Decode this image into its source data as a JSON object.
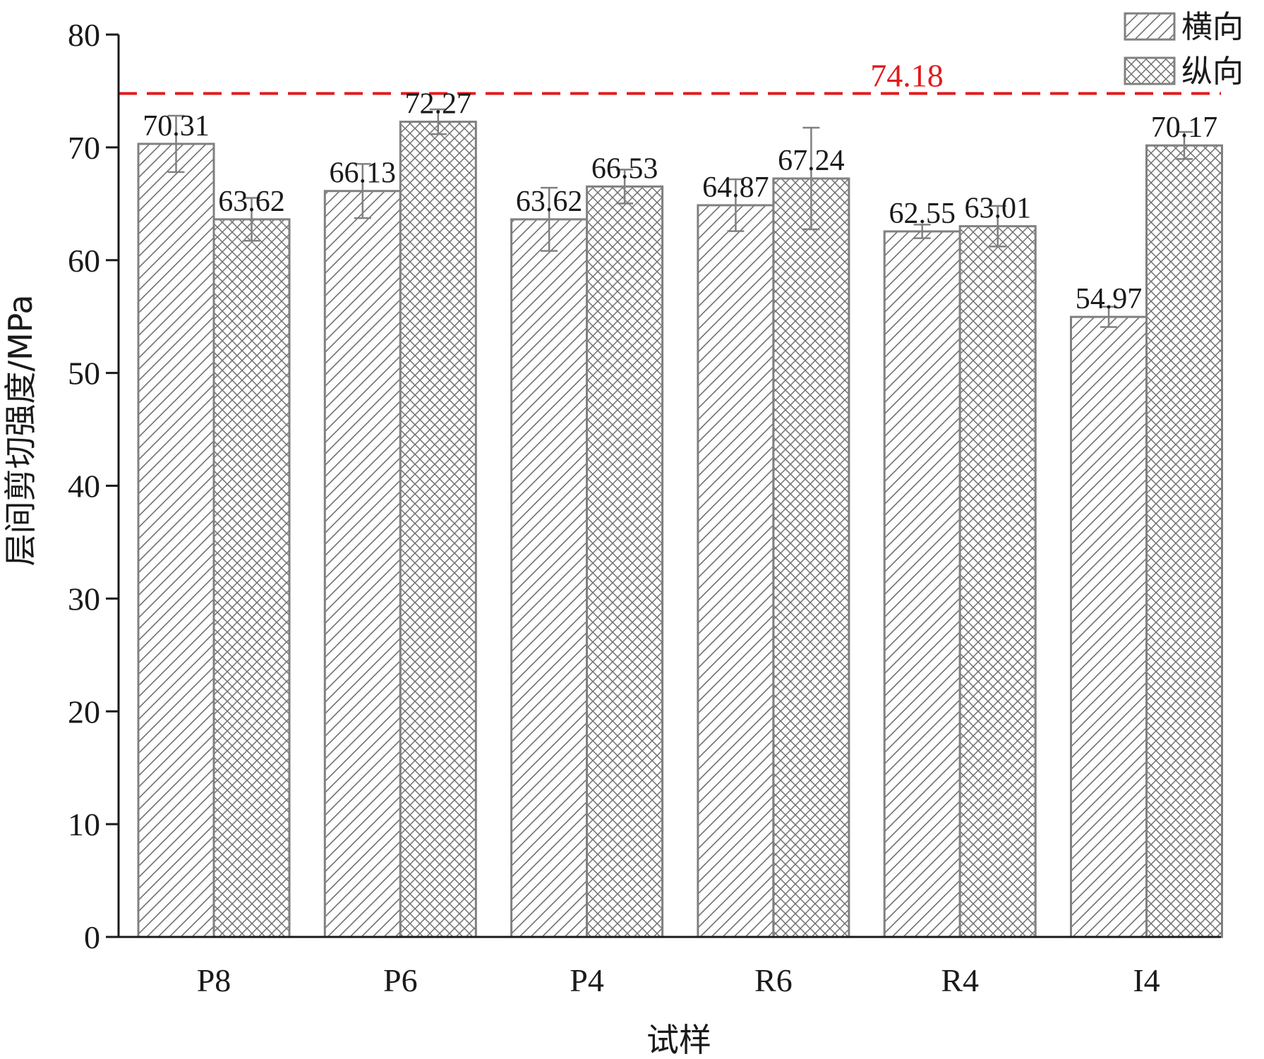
{
  "chart_data": {
    "type": "bar",
    "categories": [
      "P8",
      "P6",
      "P4",
      "R6",
      "R4",
      "I4"
    ],
    "series": [
      {
        "name": "横向",
        "pattern": "diagonal-hatch",
        "values": [
          70.31,
          66.13,
          63.62,
          64.87,
          62.55,
          54.97
        ],
        "errors": [
          2.5,
          2.4,
          2.8,
          2.3,
          0.6,
          0.9
        ],
        "labels": [
          "70.31",
          "66.13",
          "63.62",
          "64.87",
          "62.55",
          "54.97"
        ]
      },
      {
        "name": "纵向",
        "pattern": "cross-hatch",
        "values": [
          63.62,
          72.27,
          66.53,
          67.24,
          63.01,
          70.17
        ],
        "errors": [
          1.9,
          1.1,
          1.5,
          4.5,
          1.8,
          1.2
        ],
        "labels": [
          "63.62",
          "72.27",
          "66.53",
          "67.24",
          "63.01",
          "70.17"
        ]
      }
    ],
    "reference_line": {
      "value": 74.18,
      "label": "74.18",
      "color": "#e31a1c",
      "style": "dashed"
    },
    "xlabel": "试样",
    "ylabel": "层间剪切强度/MPa",
    "ylim": [
      0,
      80
    ],
    "yticks": [
      "0",
      "10",
      "20",
      "30",
      "40",
      "50",
      "60",
      "70",
      "80"
    ],
    "legend": {
      "position": "top-right"
    },
    "bar_edge_color": "#808080",
    "axis_color": "#1a1a1a",
    "grid": false
  }
}
